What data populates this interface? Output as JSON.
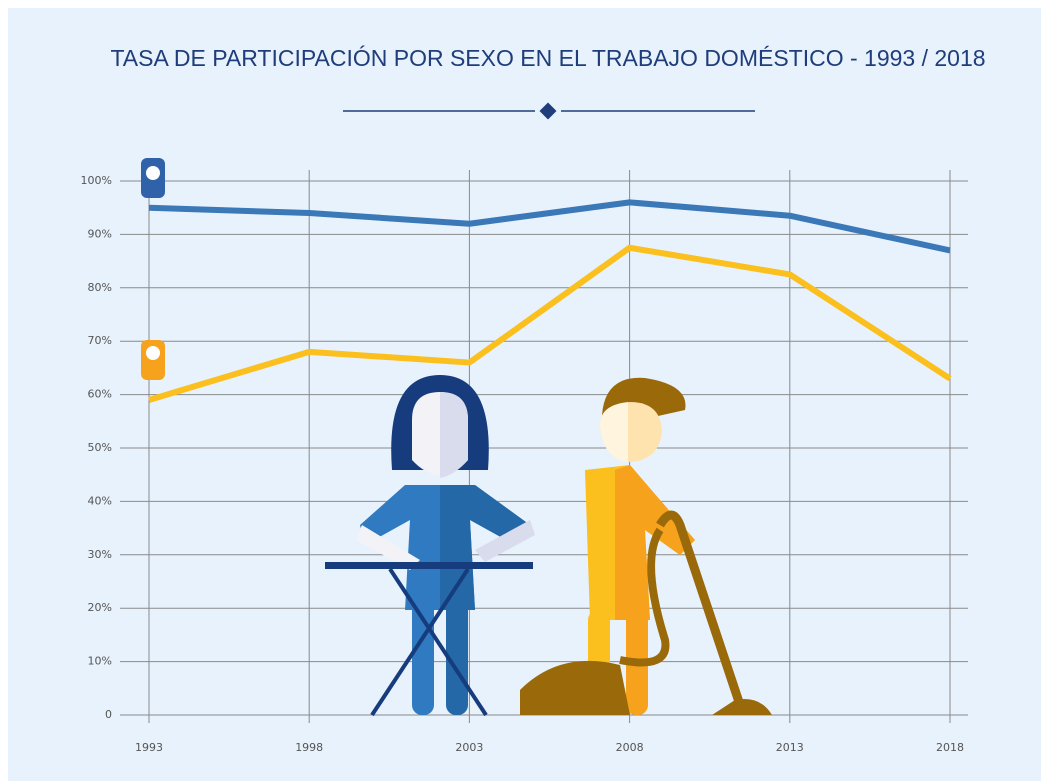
{
  "chart_data": {
    "type": "line",
    "title": "TASA DE PARTICIPACIÓN POR SEXO EN EL TRABAJO DOMÉSTICO - 1993 / 2018",
    "categories": [
      "1993",
      "1998",
      "2003",
      "2008",
      "2013",
      "2018"
    ],
    "series": [
      {
        "color": "#3a78b8",
        "values": [
          95,
          94,
          92,
          96,
          93.5,
          87
        ]
      },
      {
        "color": "#fbbf1e",
        "values": [
          59,
          68,
          66,
          87.5,
          82.5,
          63
        ]
      }
    ],
    "ylim": [
      0,
      100
    ],
    "yticks": [
      0,
      {
        "value": 10,
        "label": "10%"
      },
      {
        "value": 20,
        "label": "20%"
      },
      {
        "value": 30,
        "label": "30%"
      },
      {
        "value": 40,
        "label": "40%"
      },
      {
        "value": 50,
        "label": "50%"
      },
      {
        "value": 60,
        "label": "60%"
      },
      {
        "value": 70,
        "label": "70%"
      },
      {
        "value": 80,
        "label": "80%"
      },
      {
        "value": 90,
        "label": "90%"
      },
      {
        "value": 100,
        "label": "100%"
      }
    ],
    "grid": true
  }
}
